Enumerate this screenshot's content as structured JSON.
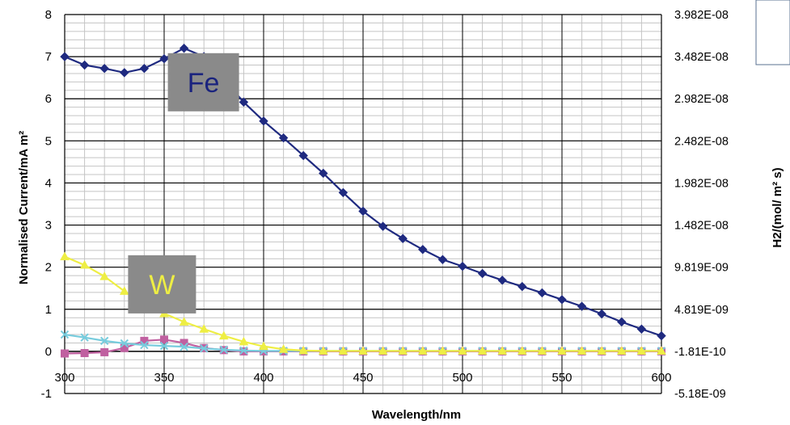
{
  "chart_data": {
    "type": "line",
    "title": "",
    "xlabel": "Wavelength/nm",
    "ylabel": "Normalised Current/mA m²",
    "y2label": "H2/(mol/ m² s)",
    "xlim": [
      300,
      600
    ],
    "ylim": [
      -1,
      8
    ],
    "xticks": [
      300,
      350,
      400,
      450,
      500,
      550,
      600
    ],
    "yticks": [
      -1,
      0,
      1,
      2,
      3,
      4,
      5,
      6,
      7,
      8
    ],
    "y2ticks": [
      {
        "y": -1,
        "label": "-5.18E-09"
      },
      {
        "y": 0,
        "label": "-1.81E-10"
      },
      {
        "y": 1,
        "label": "4.819E-09"
      },
      {
        "y": 2,
        "label": "9.819E-09"
      },
      {
        "y": 3,
        "label": "1.482E-08"
      },
      {
        "y": 4,
        "label": "1.982E-08"
      },
      {
        "y": 5,
        "label": "2.482E-08"
      },
      {
        "y": 6,
        "label": "2.982E-08"
      },
      {
        "y": 7,
        "label": "3.482E-08"
      },
      {
        "y": 8,
        "label": "3.982E-08"
      }
    ],
    "grid": true,
    "x": [
      300,
      310,
      320,
      330,
      340,
      350,
      360,
      370,
      380,
      390,
      400,
      410,
      420,
      430,
      440,
      450,
      460,
      470,
      480,
      490,
      500,
      510,
      520,
      530,
      540,
      550,
      560,
      570,
      580,
      590,
      600
    ],
    "series": [
      {
        "color": "#1f2a80",
        "marker": "diamond",
        "values": [
          7.0,
          6.8,
          6.72,
          6.62,
          6.72,
          6.95,
          7.2,
          7.0,
          6.45,
          5.92,
          5.47,
          5.07,
          4.65,
          4.23,
          3.77,
          3.33,
          2.97,
          2.68,
          2.42,
          2.18,
          2.02,
          1.85,
          1.69,
          1.54,
          1.39,
          1.23,
          1.07,
          0.89,
          0.7,
          0.53,
          0.37
        ]
      },
      {
        "color": "#eeee44",
        "marker": "triangle",
        "values": [
          2.25,
          2.05,
          1.78,
          1.43,
          1.12,
          0.9,
          0.7,
          0.53,
          0.37,
          0.23,
          0.12,
          0.05,
          0.02,
          0.01,
          0.01,
          0.01,
          0.01,
          0.01,
          0.01,
          0.01,
          0.01,
          0.01,
          0.01,
          0.01,
          0.01,
          0.01,
          0.01,
          0.01,
          0.01,
          0.01,
          0.01
        ]
      },
      {
        "color": "#77ccdd",
        "marker": "x",
        "values": [
          0.4,
          0.33,
          0.25,
          0.19,
          0.15,
          0.13,
          0.11,
          0.07,
          0.04,
          0.02,
          0.01,
          0.01,
          0.01,
          0.01,
          0.01,
          0.01,
          0.01,
          0.01,
          0.01,
          0.01,
          0.01,
          0.01,
          0.01,
          0.01,
          0.01,
          0.01,
          0.01,
          0.01,
          0.01,
          0.01,
          0.01
        ]
      },
      {
        "color": "#c060a0",
        "marker": "square",
        "values": [
          -0.05,
          -0.04,
          -0.02,
          0.08,
          0.25,
          0.28,
          0.2,
          0.08,
          0.03,
          0.0,
          0.0,
          0.0,
          0.0,
          0.0,
          0.0,
          0.0,
          0.0,
          0.0,
          0.0,
          0.0,
          0.0,
          0.0,
          0.0,
          0.0,
          0.0,
          0.0,
          0.0,
          0.0,
          0.0,
          0.0,
          0.0
        ]
      }
    ],
    "annotations": [
      {
        "text": "Fe",
        "x": 360,
        "y": 6.2,
        "box_color": "#8a8a8a",
        "text_color": "#1a237e"
      },
      {
        "text": "W",
        "x": 340,
        "y": 1.4,
        "box_color": "#8a8a8a",
        "text_color": "#eeee44"
      }
    ]
  }
}
